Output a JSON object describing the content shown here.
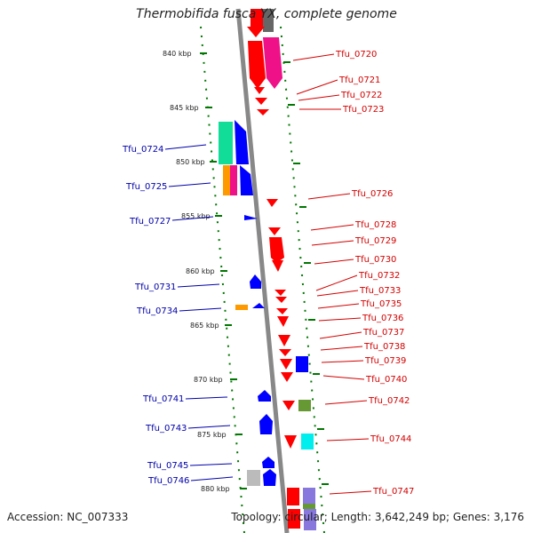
{
  "title": "Thermobifida fusca YX, complete genome",
  "accession": "Accession: NC_007333",
  "summary": "Topology: circular; Length: 3,642,249 bp; Genes: 3,176",
  "colors": {
    "forward": "#ff0000",
    "reverse": "#0000ff",
    "backbone": "#888888",
    "tick": "#007700",
    "label_forward": "#d40000",
    "label_reverse": "#0000aa"
  },
  "ticks": [
    "840 kbp",
    "845 kbp",
    "850 kbp",
    "855 kbp",
    "860 kbp",
    "865 kbp",
    "870 kbp",
    "875 kbp",
    "880 kbp"
  ],
  "genes_forward": [
    "Tfu_0720",
    "Tfu_0721",
    "Tfu_0722",
    "Tfu_0723",
    "Tfu_0726",
    "Tfu_0728",
    "Tfu_0729",
    "Tfu_0730",
    "Tfu_0732",
    "Tfu_0733",
    "Tfu_0735",
    "Tfu_0736",
    "Tfu_0737",
    "Tfu_0738",
    "Tfu_0739",
    "Tfu_0740",
    "Tfu_0742",
    "Tfu_0744",
    "Tfu_0747"
  ],
  "genes_reverse": [
    "Tfu_0724",
    "Tfu_0725",
    "Tfu_0727",
    "Tfu_0731",
    "Tfu_0734",
    "Tfu_0741",
    "Tfu_0743",
    "Tfu_0745",
    "Tfu_0746"
  ]
}
